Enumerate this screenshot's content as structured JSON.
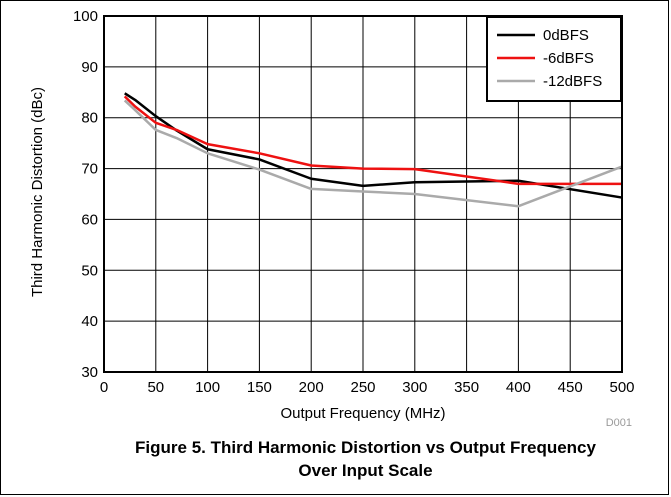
{
  "chart_data": {
    "type": "line",
    "title": "",
    "xlabel": "Output Frequency (MHz)",
    "ylabel": "Third Harmonic Distortion (dBc)",
    "xlim": [
      0,
      500
    ],
    "ylim": [
      30,
      100
    ],
    "xticks": [
      0,
      50,
      100,
      150,
      200,
      250,
      300,
      350,
      400,
      450,
      500
    ],
    "yticks": [
      30,
      40,
      50,
      60,
      70,
      80,
      90,
      100
    ],
    "grid": true,
    "legend_position": "top-right",
    "series": [
      {
        "name": "0dBFS",
        "color": "#000000",
        "x": [
          20,
          30,
          50,
          70,
          100,
          150,
          200,
          250,
          300,
          400,
          500
        ],
        "y": [
          84.8,
          83.5,
          80.3,
          77.5,
          73.8,
          71.8,
          68.0,
          66.6,
          67.3,
          67.6,
          64.3
        ]
      },
      {
        "name": "-6dBFS",
        "color": "#ee1111",
        "x": [
          20,
          30,
          50,
          70,
          100,
          150,
          200,
          250,
          300,
          400,
          500
        ],
        "y": [
          84.2,
          82.2,
          79.0,
          77.6,
          74.8,
          73.0,
          70.6,
          70.0,
          69.9,
          67.0,
          67.0
        ]
      },
      {
        "name": "-12dBFS",
        "color": "#aaaaaa",
        "x": [
          20,
          30,
          50,
          70,
          100,
          150,
          200,
          250,
          300,
          400,
          500
        ],
        "y": [
          83.4,
          81.5,
          77.6,
          76.0,
          73.0,
          69.8,
          66.0,
          65.5,
          65.0,
          62.6,
          70.4
        ]
      }
    ]
  },
  "figure_code": "D001",
  "caption": {
    "line1": "Figure 5. Third Harmonic Distortion vs Output Frequency",
    "line2": "Over Input Scale"
  }
}
